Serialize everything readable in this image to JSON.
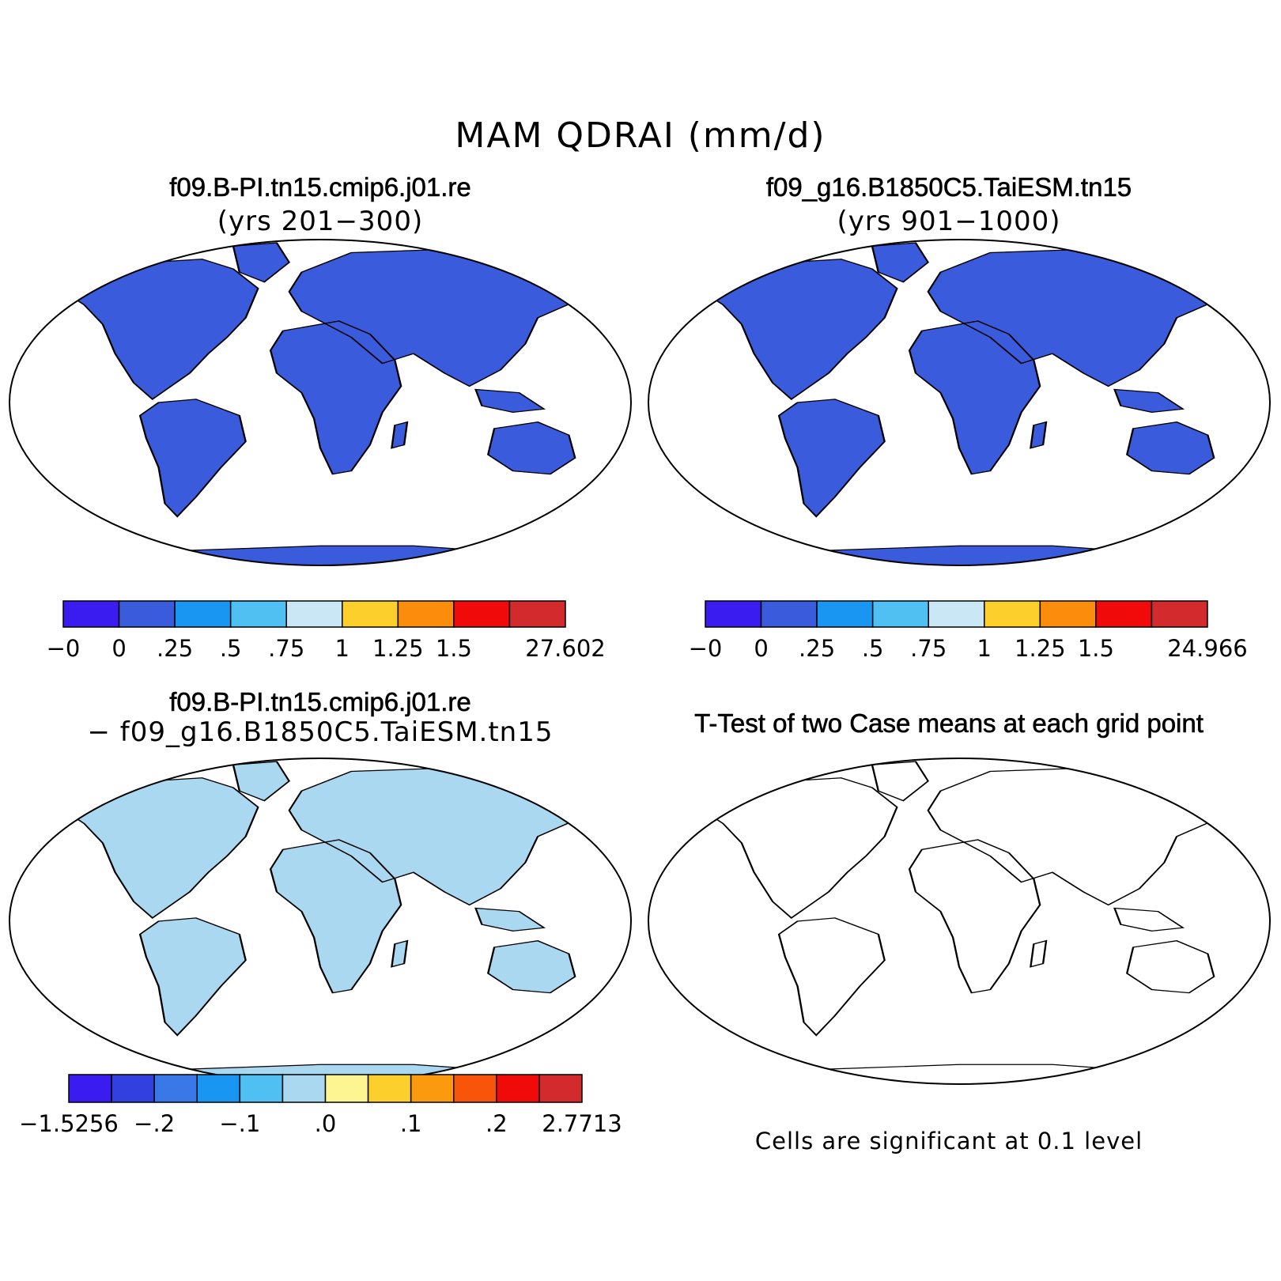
{
  "figure": {
    "title": "MAM QDRAI (mm/d)"
  },
  "panels": [
    {
      "id": "case1",
      "title": "f09.B-PI.tn15.cmip6.j01.re",
      "subtitle": "(yrs 201−300)",
      "colorbar": {
        "colors": [
          "#3b1cf0",
          "#3a5bdc",
          "#1996f2",
          "#50bff2",
          "#c9e7f5",
          "#fdcf2d",
          "#fb8c0c",
          "#f00a0a",
          "#d22a2d"
        ],
        "labels": [
          "−0",
          "0",
          ".25",
          ".5",
          ".75",
          "1",
          "1.25",
          "1.5",
          "27.602"
        ]
      }
    },
    {
      "id": "case2",
      "title": "f09_g16.B1850C5.TaiESM.tn15",
      "subtitle": "(yrs 901−1000)",
      "colorbar": {
        "colors": [
          "#3b1cf0",
          "#3a5bdc",
          "#1996f2",
          "#50bff2",
          "#c9e7f5",
          "#fdcf2d",
          "#fb8c0c",
          "#f00a0a",
          "#d22a2d"
        ],
        "labels": [
          "−0",
          "0",
          ".25",
          ".5",
          ".75",
          "1",
          "1.25",
          "1.5",
          "24.966"
        ]
      }
    },
    {
      "id": "diff",
      "title": "f09.B-PI.tn15.cmip6.j01.re",
      "subtitle": "− f09_g16.B1850C5.TaiESM.tn15",
      "colorbar": {
        "colors": [
          "#3b1cf0",
          "#3340e0",
          "#3a78e8",
          "#1996f2",
          "#50bff2",
          "#aad8f0",
          "#fcf592",
          "#fdcf2d",
          "#fb9a0e",
          "#f8550a",
          "#f00a0a",
          "#d22a2d"
        ],
        "labels": [
          "−1.5256",
          "−.2",
          "−.1",
          ".0",
          ".1",
          ".2",
          "2.7713"
        ]
      }
    },
    {
      "id": "ttest",
      "title": "T-Test of two Case means at each grid point",
      "note": "Cells are significant at 0.1 level"
    }
  ],
  "legend_colors": {
    "land_base_mean": "#3a5bdc",
    "high_runoff": "#d22a2d",
    "diff_base": "#aad8f0",
    "diff_positive": "#fcf592",
    "significant": "#f00a0a"
  },
  "icons": [
    "robinson-map-outline",
    "coastline"
  ]
}
